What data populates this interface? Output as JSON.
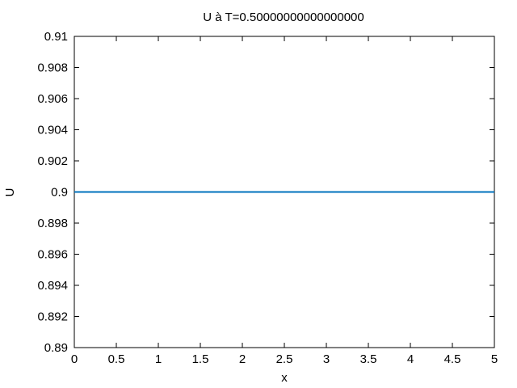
{
  "chart_data": {
    "type": "line",
    "title": "U à T=0.50000000000000000",
    "xlabel": "x",
    "ylabel": "U",
    "xlim": [
      0,
      5
    ],
    "ylim": [
      0.89,
      0.91
    ],
    "xticks": [
      "0",
      "0.5",
      "1",
      "1.5",
      "2",
      "2.5",
      "3",
      "3.5",
      "4",
      "4.5",
      "5"
    ],
    "yticks": [
      "0.89",
      "0.892",
      "0.894",
      "0.896",
      "0.898",
      "0.9",
      "0.902",
      "0.904",
      "0.906",
      "0.908",
      "0.91"
    ],
    "grid": false,
    "legend": "none",
    "series": [
      {
        "color": "#0072bd",
        "x": [
          0,
          5
        ],
        "y": [
          0.9,
          0.9
        ]
      }
    ]
  }
}
